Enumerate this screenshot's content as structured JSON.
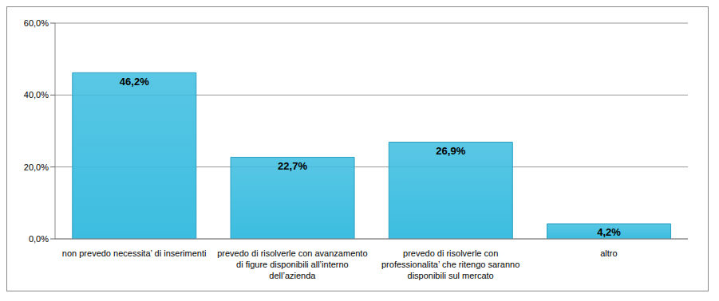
{
  "chart_data": {
    "type": "bar",
    "categories": [
      "non prevedo necessita’ di inserimenti",
      "prevedo di risolverle con avanzamento di figure disponibili all’interno dell’azienda",
      "prevedo di risolverle con professionalita’ che ritengo saranno disponibili sul mercato",
      "altro"
    ],
    "values": [
      46.2,
      22.7,
      26.9,
      4.2
    ],
    "value_labels": [
      "46,2%",
      "22,7%",
      "26,9%",
      "4,2%"
    ],
    "data_labels": true,
    "color": "#3cbde0",
    "ylim": [
      0,
      60
    ],
    "yticks": [
      {
        "value": 0,
        "label": "0,0%"
      },
      {
        "value": 20,
        "label": "20,0%"
      },
      {
        "value": 40,
        "label": "40,0%"
      },
      {
        "value": 60,
        "label": "60,0%"
      }
    ],
    "grid": true
  }
}
